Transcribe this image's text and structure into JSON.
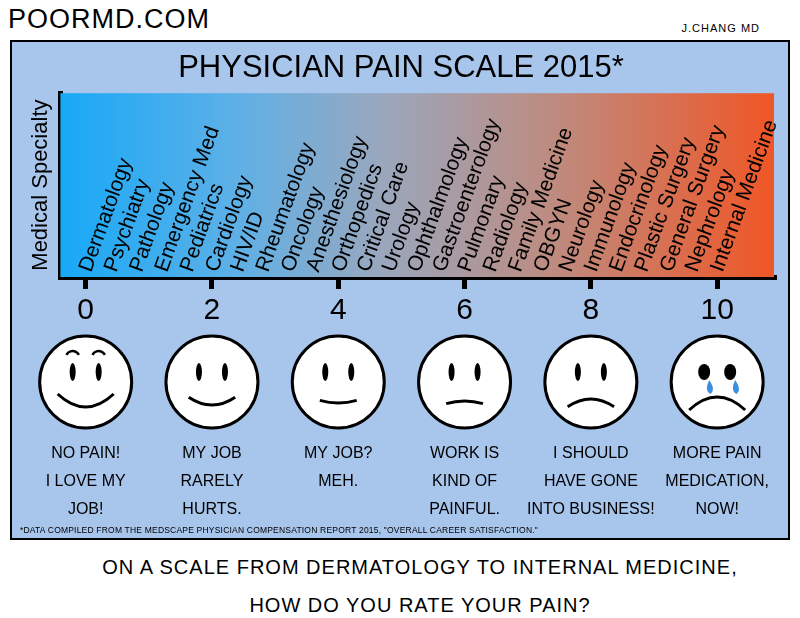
{
  "site": "POORMD.COM",
  "author": "J.CHANG MD",
  "chart_data": {
    "type": "scatter",
    "title": "PHYSICIAN PAIN SCALE 2015*",
    "y_label": "Medical Specialty",
    "categories": [
      "Dermatology",
      "Psychiatry",
      "Pathology",
      "Emergency Med",
      "Pediatrics",
      "Cardiology",
      "HIV/ID",
      "Rheumatology",
      "Oncology",
      "Anesthesiology",
      "Orthopedics",
      "Critical Care",
      "Urology",
      "Ophthalmology",
      "Gastroenterology",
      "Pulmonary",
      "Radiology",
      "Family Medicine",
      "OBGYN",
      "Neurology",
      "Immunology",
      "Endocrinology",
      "Plastic Surgery",
      "General Surgery",
      "Nephrology",
      "Internal Medicine"
    ],
    "values": [
      0,
      0.4,
      0.8,
      1.2,
      1.6,
      2,
      2.4,
      2.8,
      3.2,
      3.6,
      4,
      4.4,
      4.8,
      5.2,
      5.6,
      6,
      6.4,
      6.8,
      7.2,
      7.6,
      8,
      8.4,
      8.8,
      9.2,
      9.6,
      10
    ],
    "xlim": [
      -0.4,
      10.9
    ],
    "xticks": [
      0,
      2,
      4,
      6,
      8,
      10
    ],
    "grid": false,
    "tick_labels": "x"
  },
  "faces": [
    {
      "level": 0,
      "text": [
        "NO PAIN!",
        "I LOVE MY",
        "JOB!"
      ]
    },
    {
      "level": 2,
      "text": [
        "MY JOB",
        "RARELY",
        "HURTS."
      ]
    },
    {
      "level": 4,
      "text": [
        "MY JOB?",
        "MEH."
      ]
    },
    {
      "level": 6,
      "text": [
        "WORK IS",
        "KIND OF",
        "PAINFUL."
      ]
    },
    {
      "level": 8,
      "text": [
        "I SHOULD",
        "HAVE GONE",
        "INTO BUSINESS!"
      ]
    },
    {
      "level": 10,
      "text": [
        "MORE PAIN",
        "MEDICATION,",
        "NOW!"
      ]
    }
  ],
  "footnote": "*DATA COMPILED FROM THE MEDSCAPE PHYSICIAN COMPENSATION REPORT 2015, \"OVERALL CAREER SATISFACTION.\"",
  "caption": [
    "ON A SCALE FROM DERMATOLOGY TO INTERNAL MEDICINE,",
    "HOW DO YOU RATE YOUR PAIN?"
  ]
}
